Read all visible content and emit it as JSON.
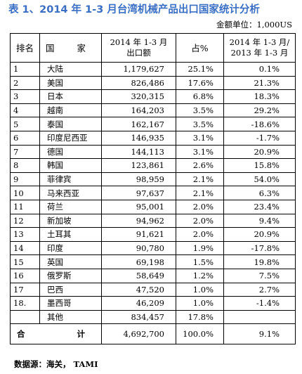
{
  "title": "表 1、2014 年 1-3 月台湾机械产品出口国家统计分析",
  "unit": "金额单位：1,000US",
  "table": {
    "headers": {
      "rank": "排名",
      "country": "国 家",
      "export_line1": "2014 年 1-3 月",
      "export_line2": "出口额",
      "share": "占%",
      "change_line1": "2014 年 1-3 月/",
      "change_line2": "2013 年 1-3 月"
    },
    "rows": [
      {
        "rank": "1",
        "country": "大陆",
        "export": "1,179,627",
        "share": "25.1%",
        "change": "0.1%"
      },
      {
        "rank": "2",
        "country": "美国",
        "export": "826,486",
        "share": "17.6%",
        "change": "21.3%"
      },
      {
        "rank": "3",
        "country": "日本",
        "export": "320,315",
        "share": "6.8%",
        "change": "18.3%"
      },
      {
        "rank": "4",
        "country": "越南",
        "export": "164,203",
        "share": "3.5%",
        "change": "29.2%"
      },
      {
        "rank": "5",
        "country": "泰国",
        "export": "162,167",
        "share": "3.5%",
        "change": "-18.6%"
      },
      {
        "rank": "6",
        "country": "印度尼西亚",
        "export": "146,935",
        "share": "3.1%",
        "change": "-1.7%"
      },
      {
        "rank": "7",
        "country": "德国",
        "export": "144,113",
        "share": "3.1%",
        "change": "20.9%"
      },
      {
        "rank": "8",
        "country": "韩国",
        "export": "123,861",
        "share": "2.6%",
        "change": "15.8%"
      },
      {
        "rank": "9",
        "country": "菲律宾",
        "export": "98,959",
        "share": "2.1%",
        "change": "54.0%"
      },
      {
        "rank": "10",
        "country": "马来西亚",
        "export": "97,637",
        "share": "2.1%",
        "change": "6.3%"
      },
      {
        "rank": "11",
        "country": "荷兰",
        "export": "95,001",
        "share": "2.0%",
        "change": "23.4%"
      },
      {
        "rank": "12",
        "country": "新加坡",
        "export": "94,962",
        "share": "2.0%",
        "change": "9.4%"
      },
      {
        "rank": "13",
        "country": "土耳其",
        "export": "91,621",
        "share": "2.0%",
        "change": "20.9%"
      },
      {
        "rank": "14",
        "country": "印度",
        "export": "90,780",
        "share": "1.9%",
        "change": "-17.8%"
      },
      {
        "rank": "15",
        "country": "英国",
        "export": "69,198",
        "share": "1.5%",
        "change": "19.8%"
      },
      {
        "rank": "16",
        "country": "俄罗斯",
        "export": "58,649",
        "share": "1.2%",
        "change": "7.5%"
      },
      {
        "rank": "17",
        "country": "巴西",
        "export": "47,520",
        "share": "1.0%",
        "change": "2.7%"
      },
      {
        "rank": "18.",
        "country": "墨西哥",
        "export": "46,209",
        "share": "1.0%",
        "change": "-1.4%"
      },
      {
        "rank": "",
        "country": "其他",
        "export": "834,457",
        "share": "17.8%",
        "change": ""
      }
    ],
    "total": {
      "label_left": "合",
      "label_right": "计",
      "export": "4,692,700",
      "share": "100.0%",
      "change": "9.1%"
    }
  },
  "source": "数据源：海关， TAMI"
}
